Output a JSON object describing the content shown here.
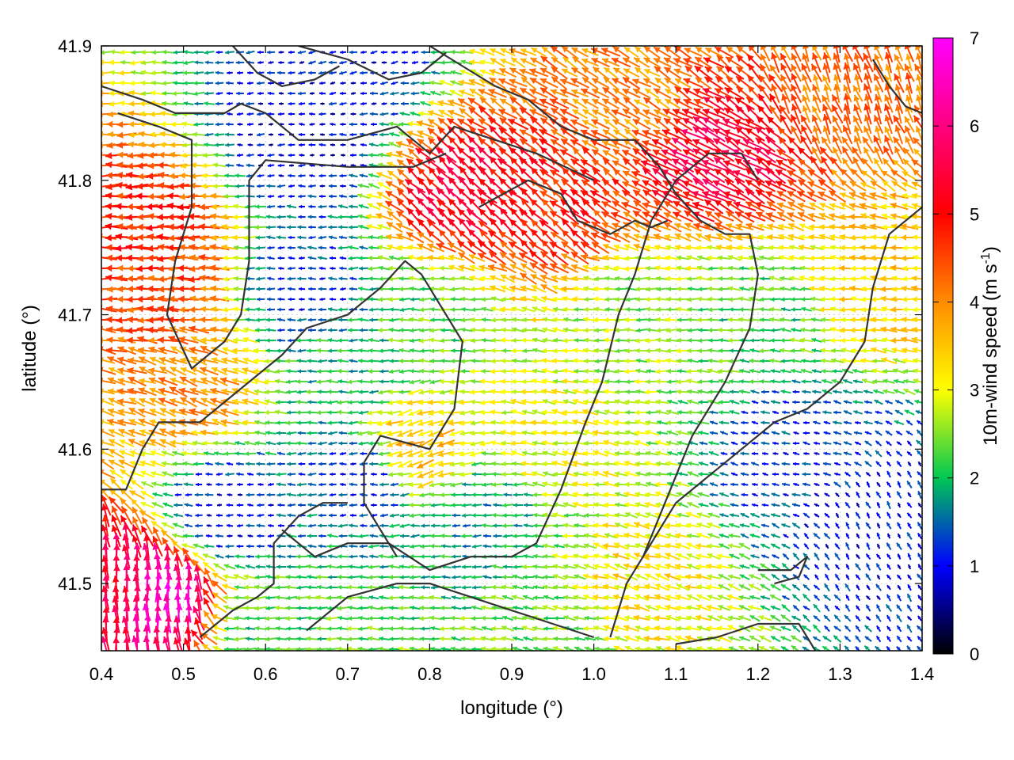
{
  "chart_data": {
    "type": "vector-field",
    "xlabel": "longitude (°)",
    "ylabel": "latitude (°)",
    "xlim": [
      0.4,
      1.4
    ],
    "ylim": [
      41.45,
      41.9
    ],
    "x_ticks": [
      "0.4",
      "0.5",
      "0.6",
      "0.7",
      "0.8",
      "0.9",
      "1.0",
      "1.1",
      "1.2",
      "1.3",
      "1.4"
    ],
    "y_ticks": [
      "41.5",
      "41.6",
      "41.7",
      "41.8",
      "41.9"
    ],
    "colorbar": {
      "label_main": "10m-wind speed (m s",
      "label_sup": "-1",
      "label_end": ")",
      "range": [
        0,
        7
      ],
      "ticks": [
        "0",
        "1",
        "2",
        "3",
        "4",
        "5",
        "6",
        "7"
      ],
      "colors": [
        "#000000",
        "#0000ff",
        "#00c853",
        "#ffff00",
        "#ff8c00",
        "#ff0000",
        "#ff00ff"
      ]
    },
    "grid": true,
    "contour_color": "#333333",
    "wind_regions": [
      {
        "lon": 0.47,
        "lat": 41.72,
        "speed": 4.5,
        "dir_deg": 180
      },
      {
        "lon": 0.45,
        "lat": 41.76,
        "speed": 4.8,
        "dir_deg": 180
      },
      {
        "lon": 0.47,
        "lat": 41.49,
        "speed": 6.5,
        "dir_deg": 90
      },
      {
        "lon": 0.42,
        "lat": 41.49,
        "speed": 5.5,
        "dir_deg": 95
      },
      {
        "lon": 0.5,
        "lat": 41.65,
        "speed": 4.0,
        "dir_deg": 160
      },
      {
        "lon": 0.84,
        "lat": 41.79,
        "speed": 5.3,
        "dir_deg": 135
      },
      {
        "lon": 0.95,
        "lat": 41.78,
        "speed": 4.8,
        "dir_deg": 140
      },
      {
        "lon": 1.15,
        "lat": 41.82,
        "speed": 5.5,
        "dir_deg": 150
      },
      {
        "lon": 1.05,
        "lat": 41.86,
        "speed": 4.0,
        "dir_deg": 150
      },
      {
        "lon": 1.3,
        "lat": 41.87,
        "speed": 4.2,
        "dir_deg": 110
      },
      {
        "lon": 0.65,
        "lat": 41.83,
        "speed": 0.8,
        "dir_deg": 180
      },
      {
        "lon": 0.65,
        "lat": 41.72,
        "speed": 1.2,
        "dir_deg": 180
      },
      {
        "lon": 0.72,
        "lat": 41.58,
        "speed": 1.1,
        "dir_deg": 180
      },
      {
        "lon": 0.55,
        "lat": 41.55,
        "speed": 1.0,
        "dir_deg": 180
      },
      {
        "lon": 0.7,
        "lat": 41.66,
        "speed": 2.0,
        "dir_deg": 180
      },
      {
        "lon": 0.8,
        "lat": 41.7,
        "speed": 2.3,
        "dir_deg": 180
      },
      {
        "lon": 0.87,
        "lat": 41.55,
        "speed": 1.8,
        "dir_deg": 180
      },
      {
        "lon": 1.05,
        "lat": 41.7,
        "speed": 2.6,
        "dir_deg": 180
      },
      {
        "lon": 1.2,
        "lat": 41.7,
        "speed": 2.2,
        "dir_deg": 175
      },
      {
        "lon": 1.25,
        "lat": 41.6,
        "speed": 1.2,
        "dir_deg": 170
      },
      {
        "lon": 1.35,
        "lat": 41.55,
        "speed": 1.0,
        "dir_deg": 120
      },
      {
        "lon": 1.05,
        "lat": 41.5,
        "speed": 3.2,
        "dir_deg": 165
      },
      {
        "lon": 0.95,
        "lat": 41.6,
        "speed": 3.0,
        "dir_deg": 170
      },
      {
        "lon": 0.78,
        "lat": 41.6,
        "speed": 3.6,
        "dir_deg": 200
      },
      {
        "lon": 1.35,
        "lat": 41.72,
        "speed": 3.4,
        "dir_deg": 175
      },
      {
        "lon": 0.95,
        "lat": 41.47,
        "speed": 2.4,
        "dir_deg": 170
      },
      {
        "lon": 0.6,
        "lat": 41.47,
        "speed": 2.2,
        "dir_deg": 180
      },
      {
        "lon": 0.7,
        "lat": 41.89,
        "speed": 1.0,
        "dir_deg": 190
      }
    ],
    "contours": [
      [
        [
          0.4,
          41.87
        ],
        [
          0.45,
          41.86
        ],
        [
          0.49,
          41.85
        ],
        [
          0.55,
          41.85
        ],
        [
          0.57,
          41.857
        ],
        [
          0.6,
          41.85
        ],
        [
          0.64,
          41.83
        ],
        [
          0.7,
          41.83
        ],
        [
          0.76,
          41.84
        ],
        [
          0.8,
          41.82
        ],
        [
          0.83,
          41.84
        ],
        [
          0.88,
          41.83
        ],
        [
          0.93,
          41.82
        ],
        [
          1.0,
          41.8
        ]
      ],
      [
        [
          0.42,
          41.85
        ],
        [
          0.47,
          41.84
        ],
        [
          0.51,
          41.83
        ],
        [
          0.51,
          41.78
        ],
        [
          0.49,
          41.74
        ],
        [
          0.48,
          41.7
        ],
        [
          0.51,
          41.66
        ],
        [
          0.55,
          41.68
        ],
        [
          0.57,
          41.7
        ],
        [
          0.58,
          41.74
        ],
        [
          0.58,
          41.8
        ],
        [
          0.6,
          41.815
        ],
        [
          0.7,
          41.81
        ],
        [
          0.78,
          41.81
        ],
        [
          0.82,
          41.82
        ]
      ],
      [
        [
          0.4,
          41.57
        ],
        [
          0.43,
          41.57
        ],
        [
          0.45,
          41.6
        ],
        [
          0.47,
          41.62
        ],
        [
          0.52,
          41.62
        ],
        [
          0.57,
          41.645
        ],
        [
          0.62,
          41.67
        ],
        [
          0.65,
          41.69
        ],
        [
          0.7,
          41.7
        ],
        [
          0.74,
          41.72
        ],
        [
          0.77,
          41.74
        ],
        [
          0.79,
          41.73
        ],
        [
          0.82,
          41.7
        ],
        [
          0.84,
          41.68
        ],
        [
          0.83,
          41.63
        ],
        [
          0.8,
          41.6
        ],
        [
          0.74,
          41.61
        ],
        [
          0.72,
          41.59
        ],
        [
          0.72,
          41.56
        ],
        [
          0.74,
          41.54
        ],
        [
          0.76,
          41.52
        ]
      ],
      [
        [
          0.62,
          41.54
        ],
        [
          0.66,
          41.52
        ],
        [
          0.7,
          41.53
        ],
        [
          0.75,
          41.53
        ],
        [
          0.8,
          41.51
        ],
        [
          0.85,
          41.52
        ],
        [
          0.9,
          41.52
        ],
        [
          0.93,
          41.53
        ],
        [
          0.96,
          41.57
        ],
        [
          0.99,
          41.62
        ],
        [
          1.01,
          41.65
        ],
        [
          1.03,
          41.7
        ],
        [
          1.05,
          41.73
        ],
        [
          1.07,
          41.77
        ],
        [
          1.1,
          41.8
        ],
        [
          1.14,
          41.82
        ],
        [
          1.18,
          41.82
        ],
        [
          1.2,
          41.8
        ]
      ],
      [
        [
          0.52,
          41.46
        ],
        [
          0.56,
          41.48
        ],
        [
          0.59,
          41.49
        ],
        [
          0.61,
          41.5
        ],
        [
          0.61,
          41.53
        ],
        [
          0.64,
          41.55
        ],
        [
          0.67,
          41.56
        ],
        [
          0.7,
          41.56
        ]
      ],
      [
        [
          0.65,
          41.465
        ],
        [
          0.7,
          41.49
        ],
        [
          0.76,
          41.5
        ],
        [
          0.8,
          41.5
        ],
        [
          0.85,
          41.49
        ],
        [
          0.9,
          41.48
        ],
        [
          0.95,
          41.47
        ],
        [
          1.0,
          41.46
        ]
      ],
      [
        [
          1.02,
          41.46
        ],
        [
          1.04,
          41.5
        ],
        [
          1.07,
          41.53
        ],
        [
          1.1,
          41.56
        ],
        [
          1.14,
          41.58
        ],
        [
          1.18,
          41.6
        ],
        [
          1.22,
          41.62
        ],
        [
          1.26,
          41.63
        ],
        [
          1.3,
          41.65
        ],
        [
          1.33,
          41.68
        ],
        [
          1.34,
          41.72
        ],
        [
          1.36,
          41.76
        ],
        [
          1.4,
          41.78
        ]
      ],
      [
        [
          1.1,
          41.455
        ],
        [
          1.15,
          41.46
        ],
        [
          1.2,
          41.47
        ],
        [
          1.25,
          41.47
        ],
        [
          1.27,
          41.45
        ]
      ],
      [
        [
          1.2,
          41.51
        ],
        [
          1.24,
          41.51
        ],
        [
          1.26,
          41.52
        ],
        [
          1.25,
          41.505
        ],
        [
          1.22,
          41.5
        ]
      ],
      [
        [
          0.8,
          41.9
        ],
        [
          0.84,
          41.885
        ],
        [
          0.88,
          41.87
        ],
        [
          0.92,
          41.86
        ],
        [
          0.96,
          41.84
        ],
        [
          1.0,
          41.83
        ],
        [
          1.05,
          41.83
        ],
        [
          1.08,
          41.81
        ],
        [
          1.1,
          41.79
        ],
        [
          1.13,
          41.77
        ],
        [
          1.16,
          41.76
        ],
        [
          1.19,
          41.76
        ],
        [
          1.2,
          41.73
        ],
        [
          1.19,
          41.69
        ],
        [
          1.16,
          41.65
        ],
        [
          1.12,
          41.61
        ],
        [
          1.1,
          41.58
        ],
        [
          1.08,
          41.55
        ],
        [
          1.06,
          41.52
        ]
      ],
      [
        [
          1.34,
          41.89
        ],
        [
          1.36,
          41.87
        ],
        [
          1.38,
          41.855
        ],
        [
          1.4,
          41.85
        ]
      ],
      [
        [
          0.64,
          41.9
        ],
        [
          0.7,
          41.89
        ],
        [
          0.75,
          41.875
        ],
        [
          0.79,
          41.88
        ],
        [
          0.82,
          41.895
        ]
      ],
      [
        [
          0.56,
          41.9
        ],
        [
          0.59,
          41.88
        ],
        [
          0.62,
          41.87
        ],
        [
          0.66,
          41.875
        ],
        [
          0.69,
          41.885
        ]
      ],
      [
        [
          0.86,
          41.78
        ],
        [
          0.92,
          41.8
        ],
        [
          0.96,
          41.79
        ],
        [
          0.98,
          41.77
        ],
        [
          1.02,
          41.76
        ],
        [
          1.05,
          41.77
        ],
        [
          1.07,
          41.765
        ],
        [
          1.09,
          41.77
        ]
      ]
    ]
  }
}
